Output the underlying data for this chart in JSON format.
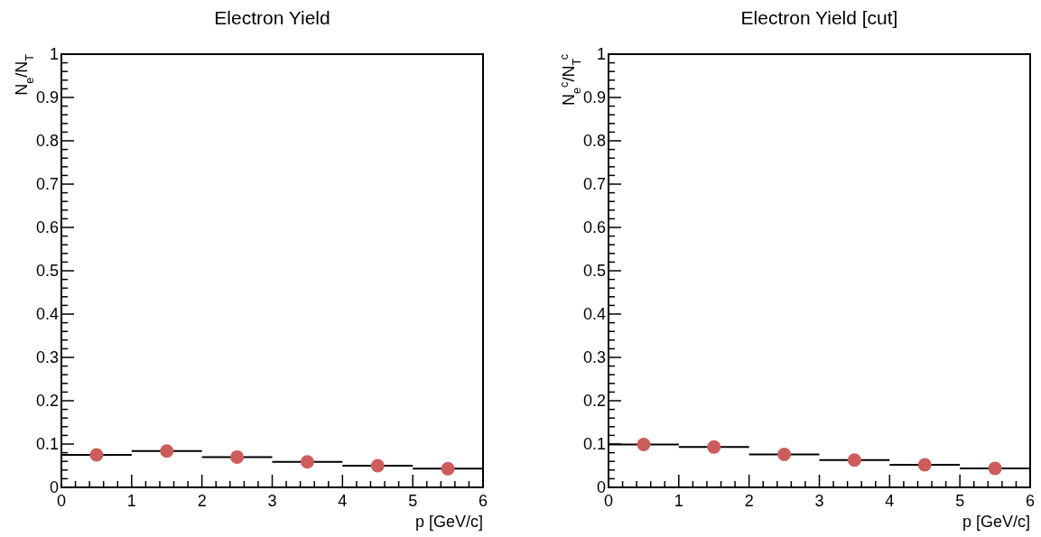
{
  "chart_data": [
    {
      "type": "scatter",
      "title": "Electron Yield",
      "xlabel": "p [GeV/c]",
      "ylabel": "N$_{e}$/N$_{T}$",
      "marker": "circle",
      "x": [
        0.5,
        1.5,
        2.5,
        3.5,
        4.5,
        5.5
      ],
      "series": [
        {
          "color": "#cd5c5c",
          "values": [
            0.075,
            0.084,
            0.07,
            0.059,
            0.05,
            0.043
          ],
          "xerrors": [
            0.5,
            0.5,
            0.5,
            0.5,
            0.5,
            0.5
          ]
        }
      ],
      "xlim": [
        0,
        6
      ],
      "ylim": [
        0,
        1
      ],
      "xticks": [
        0,
        {
          "value": 0.2,
          "label": null
        },
        {
          "value": 0.4,
          "label": null
        },
        {
          "value": 0.6,
          "label": null
        },
        {
          "value": 0.8,
          "label": null
        },
        1,
        {
          "value": 1.2,
          "label": null
        },
        {
          "value": 1.4,
          "label": null
        },
        {
          "value": 1.6,
          "label": null
        },
        {
          "value": 1.8,
          "label": null
        },
        2,
        {
          "value": 2.2,
          "label": null
        },
        {
          "value": 2.4,
          "label": null
        },
        {
          "value": 2.6,
          "label": null
        },
        {
          "value": 2.8,
          "label": null
        },
        3,
        {
          "value": 3.2,
          "label": null
        },
        {
          "value": 3.4,
          "label": null
        },
        {
          "value": 3.6,
          "label": null
        },
        {
          "value": 3.8,
          "label": null
        },
        4,
        {
          "value": 4.2,
          "label": null
        },
        {
          "value": 4.4,
          "label": null
        },
        {
          "value": 4.6,
          "label": null
        },
        {
          "value": 4.8,
          "label": null
        },
        5,
        {
          "value": 5.2,
          "label": null
        },
        {
          "value": 5.4,
          "label": null
        },
        {
          "value": 5.6,
          "label": null
        },
        {
          "value": 5.8,
          "label": null
        },
        6
      ],
      "yticks": [
        0,
        {
          "value": 0.02,
          "label": null
        },
        {
          "value": 0.04,
          "label": null
        },
        {
          "value": 0.06,
          "label": null
        },
        {
          "value": 0.08,
          "label": null
        },
        0.1,
        {
          "value": 0.12,
          "label": null
        },
        {
          "value": 0.14,
          "label": null
        },
        {
          "value": 0.16,
          "label": null
        },
        {
          "value": 0.18,
          "label": null
        },
        0.2,
        {
          "value": 0.22,
          "label": null
        },
        {
          "value": 0.24,
          "label": null
        },
        {
          "value": 0.26,
          "label": null
        },
        {
          "value": 0.28,
          "label": null
        },
        0.3,
        {
          "value": 0.32,
          "label": null
        },
        {
          "value": 0.34,
          "label": null
        },
        {
          "value": 0.36,
          "label": null
        },
        {
          "value": 0.38,
          "label": null
        },
        0.4,
        {
          "value": 0.42,
          "label": null
        },
        {
          "value": 0.44,
          "label": null
        },
        {
          "value": 0.46,
          "label": null
        },
        {
          "value": 0.48,
          "label": null
        },
        0.5,
        {
          "value": 0.52,
          "label": null
        },
        {
          "value": 0.54,
          "label": null
        },
        {
          "value": 0.56,
          "label": null
        },
        {
          "value": 0.58,
          "label": null
        },
        0.6,
        {
          "value": 0.62,
          "label": null
        },
        {
          "value": 0.64,
          "label": null
        },
        {
          "value": 0.66,
          "label": null
        },
        {
          "value": 0.68,
          "label": null
        },
        0.7,
        {
          "value": 0.72,
          "label": null
        },
        {
          "value": 0.74,
          "label": null
        },
        {
          "value": 0.76,
          "label": null
        },
        {
          "value": 0.78,
          "label": null
        },
        0.8,
        {
          "value": 0.82,
          "label": null
        },
        {
          "value": 0.84,
          "label": null
        },
        {
          "value": 0.86,
          "label": null
        },
        {
          "value": 0.88,
          "label": null
        },
        0.9,
        {
          "value": 0.92,
          "label": null
        },
        {
          "value": 0.94,
          "label": null
        },
        {
          "value": 0.96,
          "label": null
        },
        {
          "value": 0.98,
          "label": null
        },
        1
      ]
    },
    {
      "type": "scatter",
      "title": "Electron Yield [cut]",
      "xlabel": "p [GeV/c]",
      "ylabel": "N$_{e}$$^{c}$/N$_{T}$$^{c}$",
      "marker": "circle",
      "x": [
        0.5,
        1.5,
        2.5,
        3.5,
        4.5,
        5.5
      ],
      "series": [
        {
          "color": "#cd5c5c",
          "values": [
            0.099,
            0.093,
            0.076,
            0.063,
            0.052,
            0.044
          ],
          "xerrors": [
            0.5,
            0.5,
            0.5,
            0.5,
            0.5,
            0.5
          ]
        }
      ],
      "xlim": [
        0,
        6
      ],
      "ylim": [
        0,
        1
      ],
      "xticks": [
        0,
        {
          "value": 0.2,
          "label": null
        },
        {
          "value": 0.4,
          "label": null
        },
        {
          "value": 0.6,
          "label": null
        },
        {
          "value": 0.8,
          "label": null
        },
        1,
        {
          "value": 1.2,
          "label": null
        },
        {
          "value": 1.4,
          "label": null
        },
        {
          "value": 1.6,
          "label": null
        },
        {
          "value": 1.8,
          "label": null
        },
        2,
        {
          "value": 2.2,
          "label": null
        },
        {
          "value": 2.4,
          "label": null
        },
        {
          "value": 2.6,
          "label": null
        },
        {
          "value": 2.8,
          "label": null
        },
        3,
        {
          "value": 3.2,
          "label": null
        },
        {
          "value": 3.4,
          "label": null
        },
        {
          "value": 3.6,
          "label": null
        },
        {
          "value": 3.8,
          "label": null
        },
        4,
        {
          "value": 4.2,
          "label": null
        },
        {
          "value": 4.4,
          "label": null
        },
        {
          "value": 4.6,
          "label": null
        },
        {
          "value": 4.8,
          "label": null
        },
        5,
        {
          "value": 5.2,
          "label": null
        },
        {
          "value": 5.4,
          "label": null
        },
        {
          "value": 5.6,
          "label": null
        },
        {
          "value": 5.8,
          "label": null
        },
        6
      ],
      "yticks": [
        0,
        {
          "value": 0.02,
          "label": null
        },
        {
          "value": 0.04,
          "label": null
        },
        {
          "value": 0.06,
          "label": null
        },
        {
          "value": 0.08,
          "label": null
        },
        0.1,
        {
          "value": 0.12,
          "label": null
        },
        {
          "value": 0.14,
          "label": null
        },
        {
          "value": 0.16,
          "label": null
        },
        {
          "value": 0.18,
          "label": null
        },
        0.2,
        {
          "value": 0.22,
          "label": null
        },
        {
          "value": 0.24,
          "label": null
        },
        {
          "value": 0.26,
          "label": null
        },
        {
          "value": 0.28,
          "label": null
        },
        0.3,
        {
          "value": 0.32,
          "label": null
        },
        {
          "value": 0.34,
          "label": null
        },
        {
          "value": 0.36,
          "label": null
        },
        {
          "value": 0.38,
          "label": null
        },
        0.4,
        {
          "value": 0.42,
          "label": null
        },
        {
          "value": 0.44,
          "label": null
        },
        {
          "value": 0.46,
          "label": null
        },
        {
          "value": 0.48,
          "label": null
        },
        0.5,
        {
          "value": 0.52,
          "label": null
        },
        {
          "value": 0.54,
          "label": null
        },
        {
          "value": 0.56,
          "label": null
        },
        {
          "value": 0.58,
          "label": null
        },
        0.6,
        {
          "value": 0.62,
          "label": null
        },
        {
          "value": 0.64,
          "label": null
        },
        {
          "value": 0.66,
          "label": null
        },
        {
          "value": 0.68,
          "label": null
        },
        0.7,
        {
          "value": 0.72,
          "label": null
        },
        {
          "value": 0.74,
          "label": null
        },
        {
          "value": 0.76,
          "label": null
        },
        {
          "value": 0.78,
          "label": null
        },
        0.8,
        {
          "value": 0.82,
          "label": null
        },
        {
          "value": 0.84,
          "label": null
        },
        {
          "value": 0.86,
          "label": null
        },
        {
          "value": 0.88,
          "label": null
        },
        0.9,
        {
          "value": 0.92,
          "label": null
        },
        {
          "value": 0.94,
          "label": null
        },
        {
          "value": 0.96,
          "label": null
        },
        {
          "value": 0.98,
          "label": null
        },
        1
      ]
    }
  ]
}
